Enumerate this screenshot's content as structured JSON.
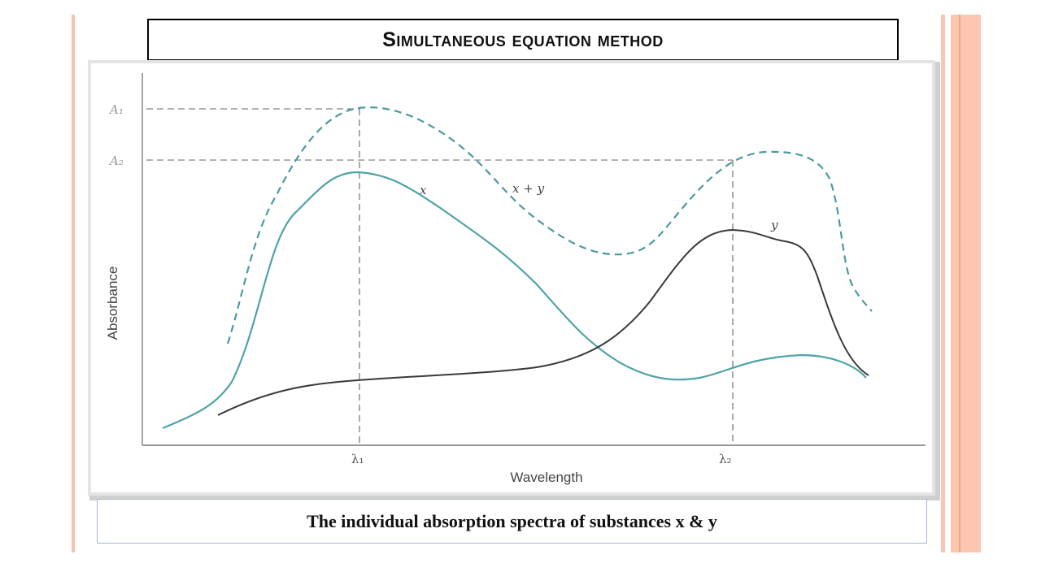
{
  "slide": {
    "title": "Simultaneous equation method",
    "caption": "The individual absorption spectra of substances x & y"
  },
  "figure": {
    "y_axis_label": "Absorbance",
    "x_axis_label": "Wavelength",
    "y_ticks": [
      "A₁",
      "A₂"
    ],
    "x_ticks": [
      "λ₁",
      "λ₂"
    ],
    "curve_labels": {
      "x": "x",
      "sum": "x + y",
      "y": "y"
    },
    "colors": {
      "x_curve": "#4fa3a8",
      "y_curve": "#3a3a3a",
      "sum_curve": "#4a9aa0",
      "accent": "#e87a34",
      "border": "#fbc7b1"
    }
  }
}
